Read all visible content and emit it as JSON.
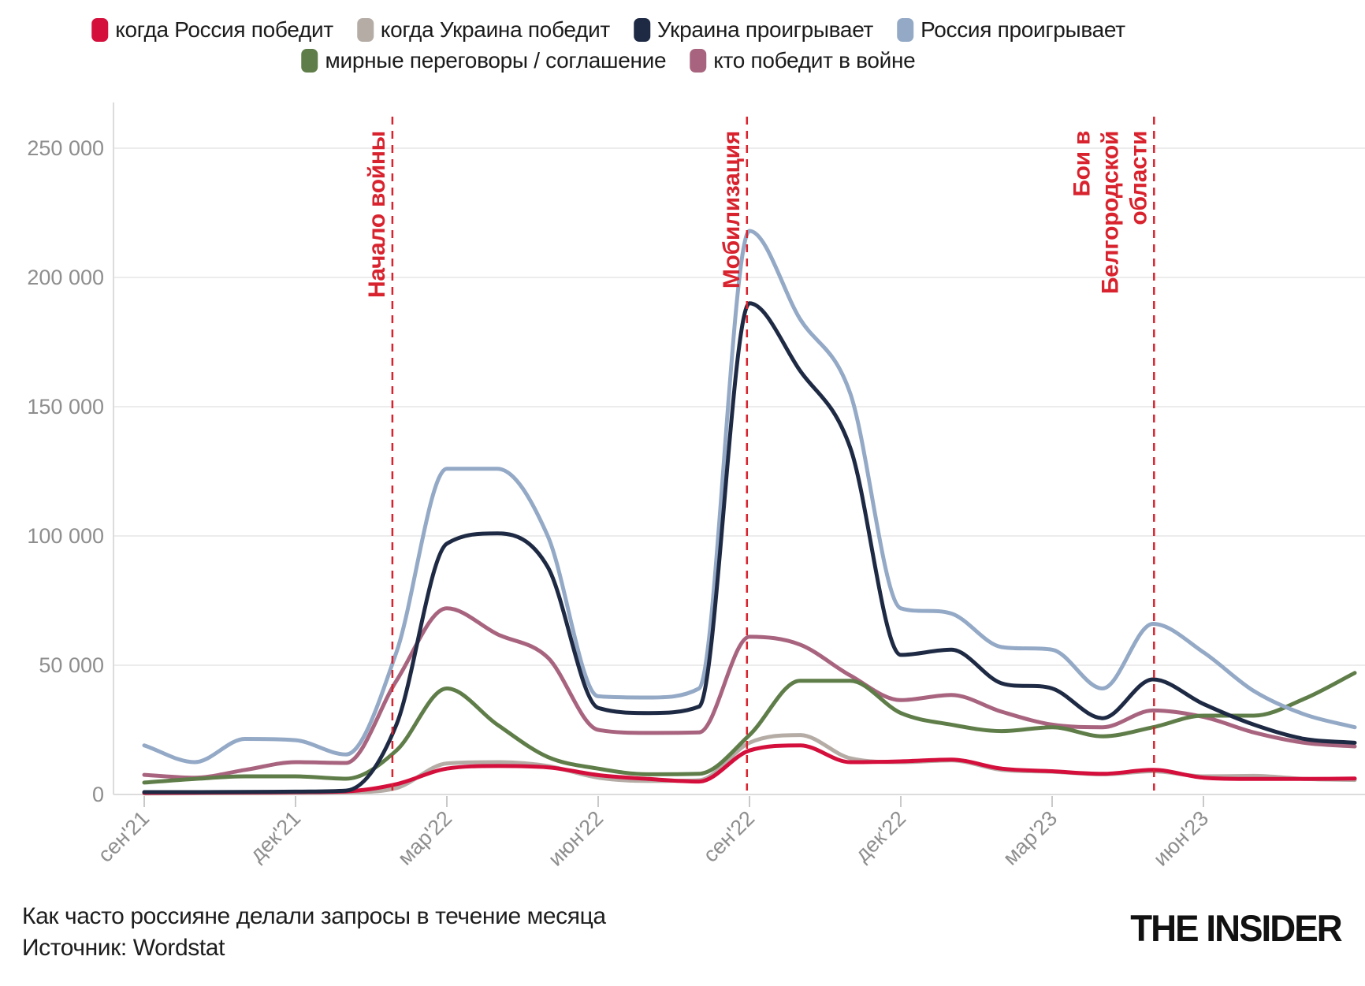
{
  "legend": {
    "rows": [
      4,
      2
    ]
  },
  "caption": {
    "title": "Как часто россияне делали запросы в течение месяца",
    "source": "Источник: Wordstat"
  },
  "logo": "THE INSIDER",
  "colors": {
    "background": "#ffffff",
    "gridline": "#ececec",
    "axis": "#dcdcdc",
    "tick": "#c9c9c9",
    "axis_text": "#8e8e8e",
    "annotation": "#d8232e"
  },
  "chart_data": {
    "type": "line",
    "title": "Как часто россияне делали запросы в течение месяца",
    "source": "Wordstat",
    "grid": "horizontal",
    "legend_position": "top",
    "ylim": [
      0,
      262000
    ],
    "x": [
      "сен'21",
      "окт'21",
      "ноя'21",
      "дек'21",
      "янв'22",
      "фев'22",
      "мар'22",
      "апр'22",
      "май'22",
      "июн'22",
      "июл'22",
      "авг'22",
      "сен'22",
      "окт'22",
      "ноя'22",
      "дек'22",
      "янв'23",
      "фев'23",
      "мар'23",
      "апр'23",
      "май'23",
      "июн'23",
      "июл'23",
      "авг'23",
      "сен'23"
    ],
    "x_ticks": {
      "indices": [
        0,
        3,
        6,
        9,
        12,
        15,
        18,
        21
      ],
      "labels": [
        "сен'21",
        "дек'21",
        "мар'22",
        "июн'22",
        "сен'22",
        "дек'22",
        "мар'23",
        "июн'23"
      ]
    },
    "y_ticks": {
      "values": [
        0,
        50000,
        100000,
        150000,
        200000,
        250000
      ],
      "labels": [
        "0",
        "50 000",
        "100 000",
        "150 000",
        "200 000",
        "250 000"
      ]
    },
    "series": [
      {
        "name": "когда Россия победит",
        "color": "#d40f3c",
        "values": [
          600,
          700,
          800,
          900,
          1200,
          4000,
          10000,
          11000,
          10500,
          7500,
          6000,
          5000,
          17000,
          19000,
          12500,
          12800,
          13500,
          10000,
          9000,
          8000,
          9500,
          6500,
          6000,
          6000,
          6200
        ]
      },
      {
        "name": "когда Украина победит",
        "color": "#b5aca6",
        "values": [
          400,
          450,
          500,
          600,
          800,
          2500,
          12000,
          12500,
          11000,
          6500,
          5200,
          5500,
          20000,
          23000,
          14000,
          12500,
          13200,
          9500,
          8800,
          7800,
          9000,
          7000,
          7200,
          6000,
          5600
        ]
      },
      {
        "name": "Украина проигрывает",
        "color": "#1e2a44",
        "values": [
          900,
          900,
          1000,
          1100,
          1500,
          27000,
          97000,
          101000,
          88000,
          33500,
          31500,
          34000,
          190000,
          164000,
          134000,
          54000,
          56000,
          43000,
          41000,
          29500,
          44500,
          35000,
          27000,
          21500,
          20000
        ]
      },
      {
        "name": "Россия проигрывает",
        "color": "#93a9c6",
        "values": [
          19000,
          12500,
          21500,
          21000,
          15500,
          55000,
          126000,
          126000,
          100000,
          38000,
          37500,
          41000,
          218000,
          184000,
          155000,
          72000,
          70000,
          57000,
          56000,
          41000,
          66000,
          55000,
          40000,
          31000,
          26000
        ]
      },
      {
        "name": "мирные переговоры / соглашение",
        "color": "#5f7d48",
        "values": [
          4600,
          6000,
          7000,
          7000,
          6100,
          17000,
          41000,
          27000,
          14500,
          10000,
          7800,
          8000,
          23000,
          44000,
          44000,
          31500,
          27000,
          24500,
          26000,
          22500,
          26000,
          30500,
          30500,
          37000,
          47000
        ]
      },
      {
        "name": "кто победит в войне",
        "color": "#a8647e",
        "values": [
          7600,
          6500,
          9500,
          12500,
          12200,
          44000,
          72000,
          62000,
          53000,
          25000,
          23800,
          24000,
          61000,
          58000,
          46000,
          36500,
          38500,
          32000,
          27000,
          26000,
          32500,
          30000,
          24000,
          20000,
          18600
        ]
      }
    ],
    "annotations": [
      {
        "label": "Начало войны",
        "lines": [
          "Начало войны"
        ],
        "month_index": 4.92
      },
      {
        "label": "Мобилизация",
        "lines": [
          "Мобилизация"
        ],
        "month_index": 11.95
      },
      {
        "label": "Бои в Белгородской области",
        "lines": [
          "Бои в",
          "Белгородской",
          "области"
        ],
        "month_index": 20.02
      }
    ]
  }
}
